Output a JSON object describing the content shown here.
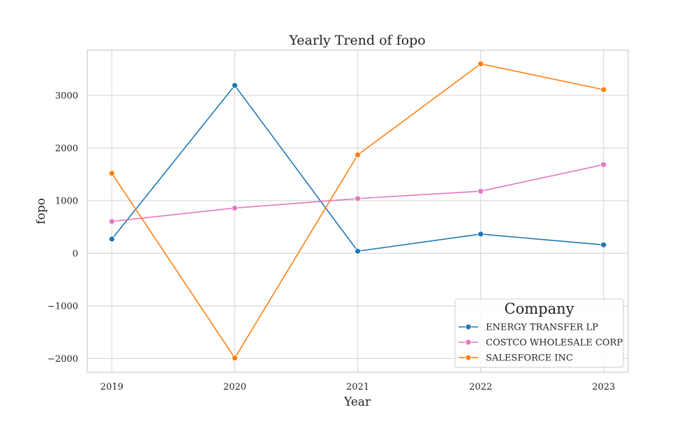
{
  "chart_data": {
    "type": "line",
    "title": "Yearly Trend of fopo",
    "xlabel": "Year",
    "ylabel": "fopo",
    "x": [
      2019,
      2020,
      2021,
      2022,
      2023
    ],
    "x_ticks": [
      "2019",
      "2020",
      "2021",
      "2022",
      "2023"
    ],
    "y_ticks": [
      -2000,
      -1000,
      0,
      1000,
      2000,
      3000
    ],
    "y_tick_labels": [
      "−2000",
      "−1000",
      "0",
      "1000",
      "2000",
      "3000"
    ],
    "ylim": [
      -2260,
      3860
    ],
    "xlim": [
      2018.8,
      2023.2
    ],
    "grid": true,
    "legend": {
      "title": "Company",
      "placement": "bottom-right"
    },
    "series": [
      {
        "name": "ENERGY TRANSFER LP",
        "color": "#1f77b4",
        "values": [
          270,
          3190,
          40,
          365,
          160
        ]
      },
      {
        "name": "COSTCO WHOLESALE CORP",
        "color": "#e377c2",
        "values": [
          605,
          860,
          1040,
          1180,
          1685
        ]
      },
      {
        "name": "SALESFORCE INC",
        "color": "#ff7f0e",
        "values": [
          1520,
          -1990,
          1870,
          3600,
          3110
        ]
      }
    ]
  }
}
